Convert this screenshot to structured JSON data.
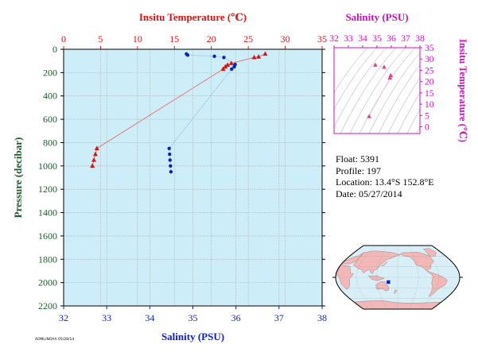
{
  "chart_data": [
    {
      "type": "scatter",
      "title": "",
      "top_axis_label": "Insitu Temperature (℃)",
      "bottom_axis_label": "Salinity (PSU)",
      "ylabel": "Pressure (decibar)",
      "temperature_ticks": [
        "0",
        "5",
        "10",
        "15",
        "20",
        "25",
        "30",
        "35"
      ],
      "salinity_ticks": [
        "32",
        "33",
        "34",
        "35",
        "36",
        "37",
        "38"
      ],
      "pressure_ticks": [
        "0",
        "200",
        "400",
        "600",
        "800",
        "1000",
        "1200",
        "1400",
        "1600",
        "1800",
        "2000",
        "2200"
      ],
      "temperature_range": [
        0,
        35
      ],
      "salinity_range": [
        32,
        38
      ],
      "pressure_range": [
        0,
        2200
      ],
      "y_inverted": true,
      "grid": true,
      "colors": {
        "temperature": "#e01010",
        "salinity": "#1020c0",
        "background": "#cdeef8",
        "grid": "#a8a8a8"
      },
      "series": [
        {
          "name": "Insitu Temperature",
          "marker": "triangle",
          "points": [
            {
              "pressure": 40,
              "temperature": 27.3
            },
            {
              "pressure": 65,
              "temperature": 26.4
            },
            {
              "pressure": 70,
              "temperature": 25.8
            },
            {
              "pressure": 120,
              "temperature": 22.7
            },
            {
              "pressure": 135,
              "temperature": 22.2
            },
            {
              "pressure": 150,
              "temperature": 21.9
            },
            {
              "pressure": 170,
              "temperature": 21.6
            },
            {
              "pressure": 850,
              "temperature": 4.5
            },
            {
              "pressure": 900,
              "temperature": 4.3
            },
            {
              "pressure": 950,
              "temperature": 4.1
            },
            {
              "pressure": 1000,
              "temperature": 3.9
            }
          ]
        },
        {
          "name": "Salinity",
          "marker": "circle",
          "points": [
            {
              "pressure": 40,
              "salinity": 34.85
            },
            {
              "pressure": 50,
              "salinity": 34.88
            },
            {
              "pressure": 60,
              "salinity": 35.5
            },
            {
              "pressure": 70,
              "salinity": 35.72
            },
            {
              "pressure": 130,
              "salinity": 35.98
            },
            {
              "pressure": 150,
              "salinity": 35.96
            },
            {
              "pressure": 170,
              "salinity": 35.9
            },
            {
              "pressure": 850,
              "salinity": 34.45
            },
            {
              "pressure": 900,
              "salinity": 34.46
            },
            {
              "pressure": 950,
              "salinity": 34.47
            },
            {
              "pressure": 1000,
              "salinity": 34.48
            },
            {
              "pressure": 1050,
              "salinity": 34.49
            }
          ]
        }
      ]
    },
    {
      "type": "scatter",
      "title": "",
      "top_axis_label": "Salinity (PSU)",
      "ylabel": "Insitu Temperature (℃)",
      "salinity_ticks": [
        "32",
        "33",
        "34",
        "35",
        "36",
        "37",
        "38"
      ],
      "temperature_ticks": [
        "0",
        "5",
        "10",
        "15",
        "20",
        "25",
        "30",
        "35"
      ],
      "salinity_range": [
        32,
        38
      ],
      "temperature_range": [
        -3,
        35
      ],
      "colors": {
        "frame": "#d010c0",
        "points": "#e0408a",
        "contours": "#9aa0aa"
      },
      "points": [
        {
          "salinity": 34.45,
          "temperature": 4.5
        },
        {
          "salinity": 35.9,
          "temperature": 21.6
        },
        {
          "salinity": 35.96,
          "temperature": 22.7
        },
        {
          "salinity": 35.5,
          "temperature": 26.4
        },
        {
          "salinity": 34.88,
          "temperature": 27.3
        }
      ]
    }
  ],
  "float_info": {
    "float": "Float:  5391",
    "profile": "Profile:  197",
    "location": "Location:  13.4°S  152.8°E",
    "date": "Date:  05/27/2014"
  },
  "map": {
    "projection": "robinson",
    "ocean_color": "#d9eff8",
    "land_color": "#f2b8b8",
    "marker_color": "#1020c0",
    "float_position": {
      "lat": -13.4,
      "lon": 152.8
    }
  },
  "footnote": "AOML/NOAA  05/28/14"
}
